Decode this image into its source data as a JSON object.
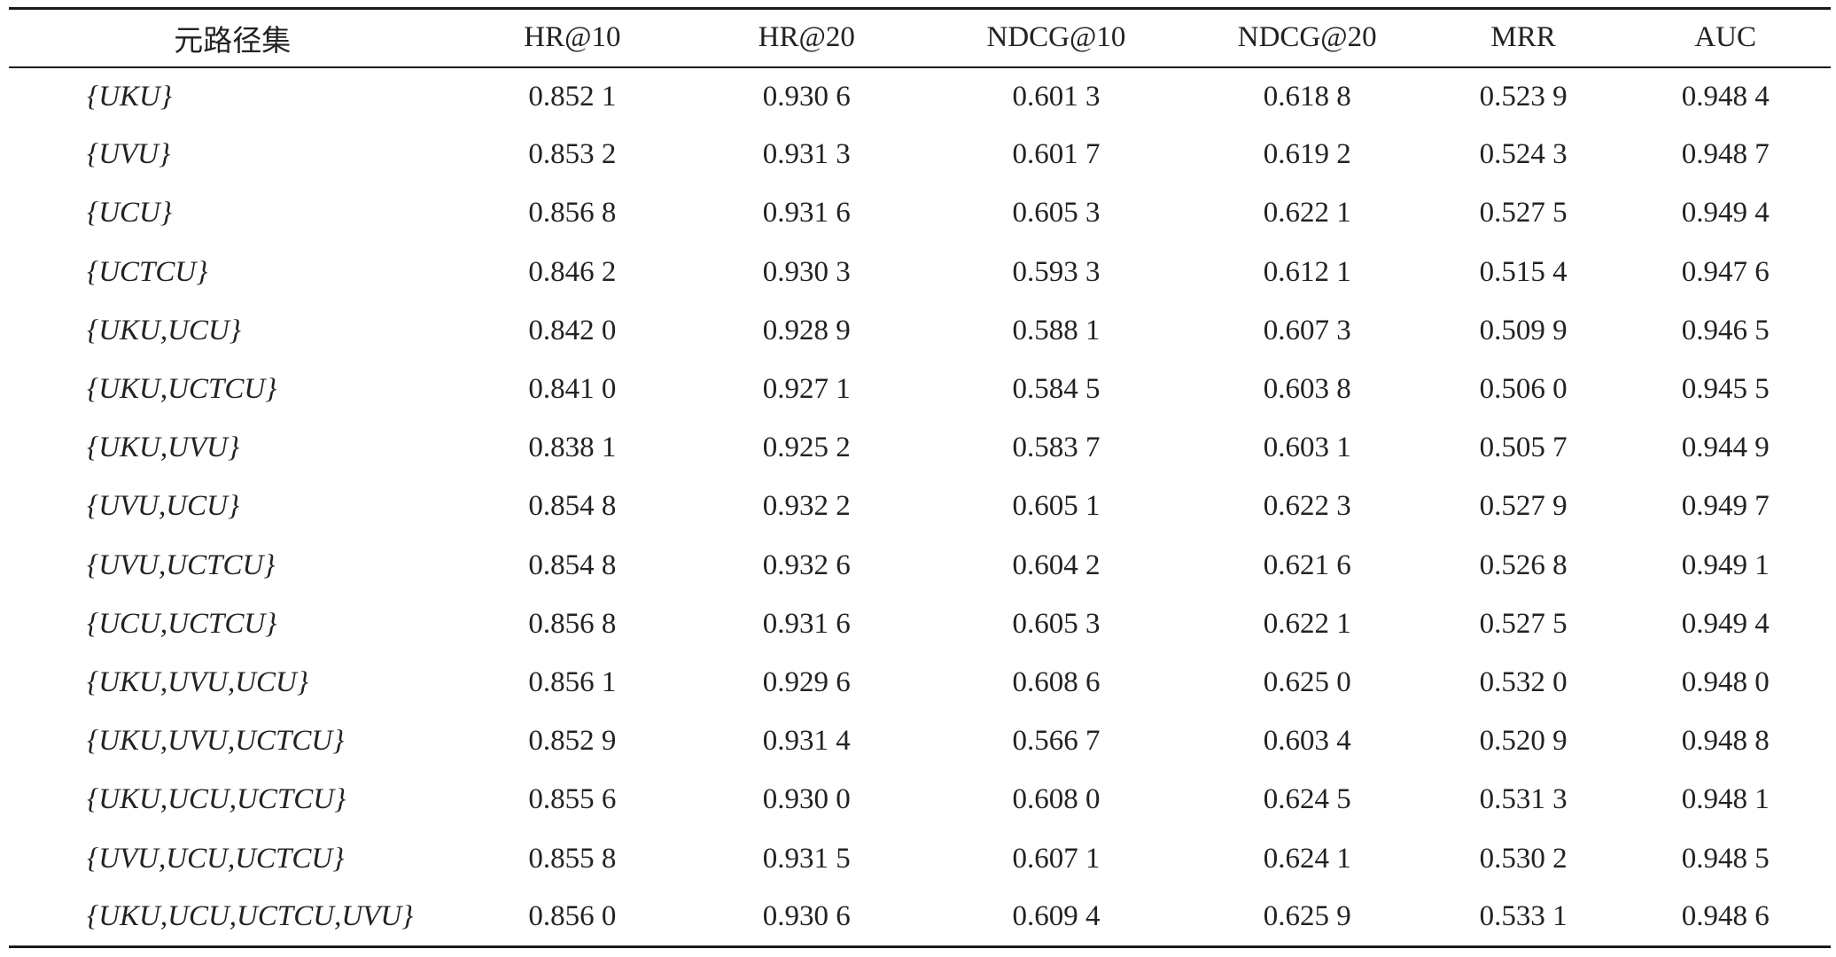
{
  "table": {
    "headers": [
      "元路径集",
      "HR@10",
      "HR@20",
      "NDCG@10",
      "NDCG@20",
      "MRR",
      "AUC"
    ],
    "rows": [
      [
        "{UKU}",
        "0.852 1",
        "0.930 6",
        "0.601 3",
        "0.618 8",
        "0.523 9",
        "0.948 4"
      ],
      [
        "{UVU}",
        "0.853 2",
        "0.931 3",
        "0.601 7",
        "0.619 2",
        "0.524 3",
        "0.948 7"
      ],
      [
        "{UCU}",
        "0.856 8",
        "0.931 6",
        "0.605 3",
        "0.622 1",
        "0.527 5",
        "0.949 4"
      ],
      [
        "{UCTCU}",
        "0.846 2",
        "0.930 3",
        "0.593 3",
        "0.612 1",
        "0.515 4",
        "0.947 6"
      ],
      [
        "{UKU,UCU}",
        "0.842 0",
        "0.928 9",
        "0.588 1",
        "0.607 3",
        "0.509 9",
        "0.946 5"
      ],
      [
        "{UKU,UCTCU}",
        "0.841 0",
        "0.927 1",
        "0.584 5",
        "0.603 8",
        "0.506 0",
        "0.945 5"
      ],
      [
        "{UKU,UVU}",
        "0.838 1",
        "0.925 2",
        "0.583 7",
        "0.603 1",
        "0.505 7",
        "0.944 9"
      ],
      [
        "{UVU,UCU}",
        "0.854 8",
        "0.932 2",
        "0.605 1",
        "0.622 3",
        "0.527 9",
        "0.949 7"
      ],
      [
        "{UVU,UCTCU}",
        "0.854 8",
        "0.932 6",
        "0.604 2",
        "0.621 6",
        "0.526 8",
        "0.949 1"
      ],
      [
        "{UCU,UCTCU}",
        "0.856 8",
        "0.931 6",
        "0.605 3",
        "0.622 1",
        "0.527 5",
        "0.949 4"
      ],
      [
        "{UKU,UVU,UCU}",
        "0.856 1",
        "0.929 6",
        "0.608 6",
        "0.625 0",
        "0.532 0",
        "0.948 0"
      ],
      [
        "{UKU,UVU,UCTCU}",
        "0.852 9",
        "0.931 4",
        "0.566 7",
        "0.603 4",
        "0.520 9",
        "0.948 8"
      ],
      [
        "{UKU,UCU,UCTCU}",
        "0.855 6",
        "0.930 0",
        "0.608 0",
        "0.624 5",
        "0.531 3",
        "0.948 1"
      ],
      [
        "{UVU,UCU,UCTCU}",
        "0.855 8",
        "0.931 5",
        "0.607 1",
        "0.624 1",
        "0.530 2",
        "0.948 5"
      ],
      [
        "{UKU,UCU,UCTCU,UVU}",
        "0.856 0",
        "0.930 6",
        "0.609 4",
        "0.625 9",
        "0.533 1",
        "0.948 6"
      ]
    ]
  }
}
